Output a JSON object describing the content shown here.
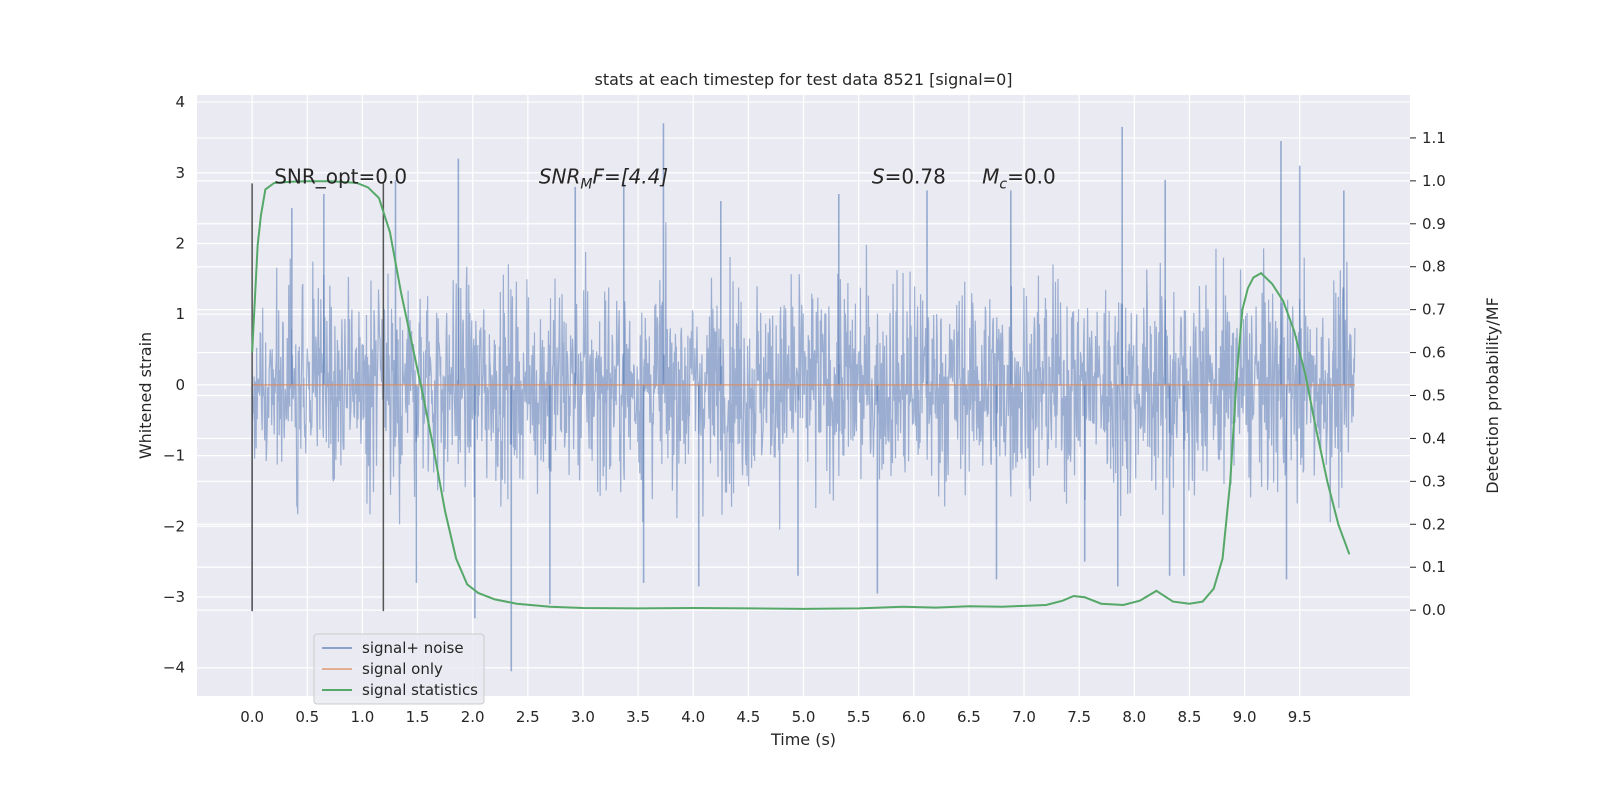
{
  "chart_data": {
    "type": "line",
    "title": "stats at each timestep for test data 8521 [signal=0]",
    "xlabel": "Time (s)",
    "ylabel": "Whitened strain",
    "y2label": "Detection probability/MF",
    "xlim": [
      -0.5,
      10.5
    ],
    "ylim": [
      -4.4,
      4.1
    ],
    "y2lim": [
      -0.2,
      1.2
    ],
    "xticks": [
      0.0,
      0.5,
      1.0,
      1.5,
      2.0,
      2.5,
      3.0,
      3.5,
      4.0,
      4.5,
      5.0,
      5.5,
      6.0,
      6.5,
      7.0,
      7.5,
      8.0,
      8.5,
      9.0,
      9.5
    ],
    "xtick_labels": [
      "0.0",
      "0.5",
      "1.0",
      "1.5",
      "2.0",
      "2.5",
      "3.0",
      "3.5",
      "4.0",
      "4.5",
      "5.0",
      "5.5",
      "6.0",
      "6.5",
      "7.0",
      "7.5",
      "8.0",
      "8.5",
      "9.0",
      "9.5"
    ],
    "yticks": [
      -4,
      -3,
      -2,
      -1,
      0,
      1,
      2,
      3,
      4
    ],
    "ytick_labels": [
      "−4",
      "−3",
      "−2",
      "−1",
      "0",
      "1",
      "2",
      "3",
      "4"
    ],
    "y2ticks": [
      0.0,
      0.1,
      0.2,
      0.3,
      0.4,
      0.5,
      0.6,
      0.7,
      0.8,
      0.9,
      1.0,
      1.1
    ],
    "y2tick_labels": [
      "0.0",
      "0.1",
      "0.2",
      "0.3",
      "0.4",
      "0.5",
      "0.6",
      "0.7",
      "0.8",
      "0.9",
      "1.0",
      "1.1"
    ],
    "annotations": {
      "snr_opt": "SNR_opt=0.0",
      "snr_mf_main": "SNR",
      "snr_mf_sub": "M",
      "snr_mf_rest": "F=[4.4]",
      "s_symbol": "S",
      "s_value": "=0.78",
      "mc_symbol": "M",
      "mc_sub": "c",
      "mc_value": "=0.0"
    },
    "window_lines": [
      {
        "x": 0.0,
        "ymin": -3.2,
        "ymax": 2.85
      },
      {
        "x": 1.19,
        "ymin": -3.2,
        "ymax": 2.85
      }
    ],
    "series": [
      {
        "name": "signal+ noise",
        "color": "#4c72b0",
        "axis": "left",
        "x_range": [
          0.0,
          10.0
        ],
        "typical_abs_max": 1.6,
        "extreme_peaks": [
          {
            "x": 0.0,
            "y": -3.2
          },
          {
            "x": 0.36,
            "y": 2.5
          },
          {
            "x": 0.65,
            "y": 2.7
          },
          {
            "x": 1.3,
            "y": 2.9
          },
          {
            "x": 1.49,
            "y": -2.8
          },
          {
            "x": 1.87,
            "y": 3.2
          },
          {
            "x": 2.02,
            "y": -3.3
          },
          {
            "x": 2.35,
            "y": -4.05
          },
          {
            "x": 2.7,
            "y": -3.1
          },
          {
            "x": 2.93,
            "y": 2.8
          },
          {
            "x": 3.37,
            "y": 2.85
          },
          {
            "x": 3.55,
            "y": -2.8
          },
          {
            "x": 3.73,
            "y": 3.7
          },
          {
            "x": 4.05,
            "y": -2.85
          },
          {
            "x": 4.25,
            "y": 2.6
          },
          {
            "x": 4.95,
            "y": -2.7
          },
          {
            "x": 5.32,
            "y": 2.7
          },
          {
            "x": 5.67,
            "y": -2.95
          },
          {
            "x": 6.12,
            "y": 2.75
          },
          {
            "x": 6.75,
            "y": -2.75
          },
          {
            "x": 6.88,
            "y": 2.75
          },
          {
            "x": 7.55,
            "y": -2.5
          },
          {
            "x": 7.85,
            "y": -2.85
          },
          {
            "x": 7.89,
            "y": 3.65
          },
          {
            "x": 8.28,
            "y": 2.9
          },
          {
            "x": 8.32,
            "y": -2.7
          },
          {
            "x": 8.45,
            "y": -2.7
          },
          {
            "x": 9.33,
            "y": 3.45
          },
          {
            "x": 9.38,
            "y": -2.75
          },
          {
            "x": 9.5,
            "y": 3.1
          },
          {
            "x": 9.9,
            "y": 2.75
          }
        ]
      },
      {
        "name": "signal only",
        "color": "#dd8452",
        "axis": "left",
        "x": [
          0.0,
          10.0
        ],
        "y": [
          0.0,
          0.0
        ]
      },
      {
        "name": "signal statistics",
        "color": "#55a868",
        "axis": "right",
        "x": [
          0.0,
          0.05,
          0.08,
          0.12,
          0.2,
          0.35,
          0.5,
          0.7,
          0.85,
          0.95,
          1.05,
          1.15,
          1.25,
          1.35,
          1.45,
          1.55,
          1.65,
          1.75,
          1.85,
          1.95,
          2.05,
          2.2,
          2.4,
          2.7,
          3.0,
          3.5,
          4.0,
          4.5,
          5.0,
          5.5,
          5.9,
          6.2,
          6.5,
          6.8,
          7.0,
          7.2,
          7.35,
          7.45,
          7.55,
          7.7,
          7.9,
          8.05,
          8.2,
          8.35,
          8.5,
          8.62,
          8.72,
          8.8,
          8.87,
          8.93,
          8.98,
          9.03,
          9.08,
          9.15,
          9.25,
          9.35,
          9.45,
          9.55,
          9.65,
          9.75,
          9.85,
          9.95
        ],
        "y": [
          0.6,
          0.85,
          0.92,
          0.98,
          0.995,
          0.998,
          0.999,
          0.999,
          0.997,
          0.995,
          0.985,
          0.96,
          0.88,
          0.74,
          0.62,
          0.5,
          0.37,
          0.23,
          0.12,
          0.06,
          0.04,
          0.025,
          0.015,
          0.008,
          0.005,
          0.004,
          0.005,
          0.004,
          0.003,
          0.004,
          0.008,
          0.006,
          0.009,
          0.008,
          0.01,
          0.012,
          0.022,
          0.033,
          0.03,
          0.015,
          0.012,
          0.022,
          0.045,
          0.02,
          0.015,
          0.02,
          0.05,
          0.12,
          0.3,
          0.55,
          0.7,
          0.75,
          0.775,
          0.785,
          0.76,
          0.72,
          0.65,
          0.55,
          0.42,
          0.3,
          0.2,
          0.13
        ]
      }
    ],
    "legend": {
      "position": "lower-left",
      "entries": [
        "signal+ noise",
        "signal only",
        "signal statistics"
      ]
    }
  }
}
